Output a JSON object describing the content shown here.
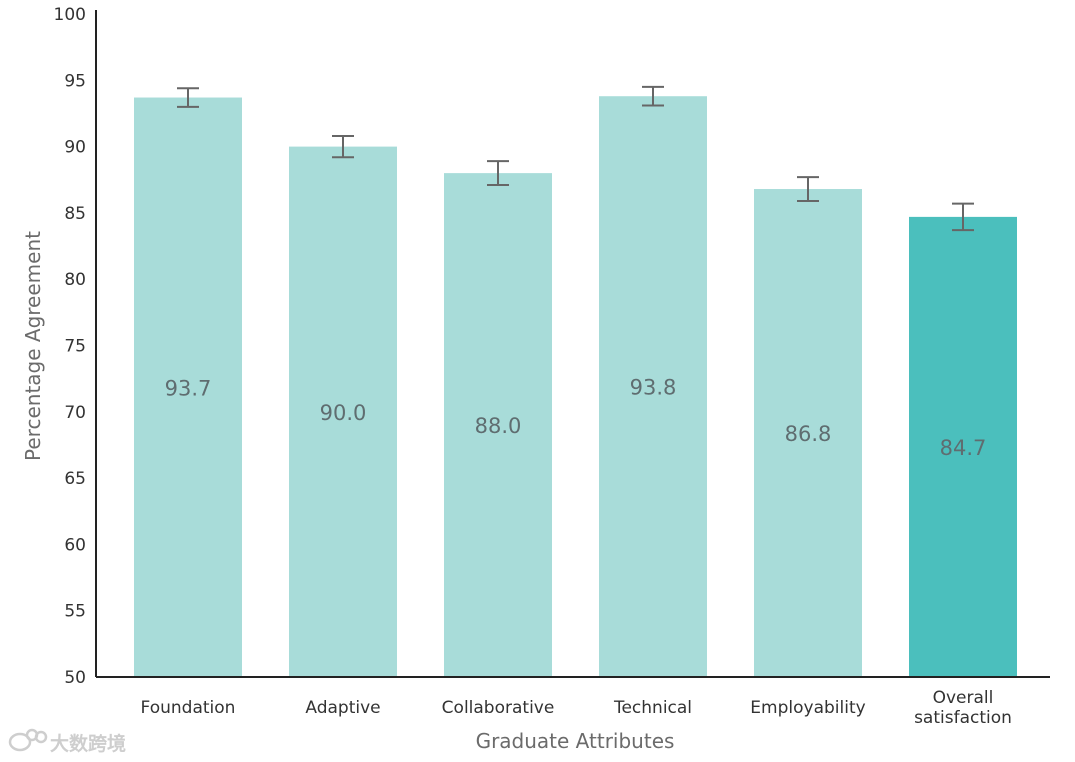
{
  "chart_data": {
    "type": "bar",
    "title": "",
    "xlabel": "Graduate Attributes",
    "ylabel": "Percentage Agreement",
    "ylim": [
      50,
      100
    ],
    "yticks": [
      50,
      55,
      60,
      65,
      70,
      75,
      80,
      85,
      90,
      95,
      100
    ],
    "categories": [
      [
        "Foundation"
      ],
      [
        "Adaptive"
      ],
      [
        "Collaborative"
      ],
      [
        "Technical"
      ],
      [
        "Employability"
      ],
      [
        "Overall",
        "satisfaction"
      ]
    ],
    "values": [
      93.7,
      90.0,
      88.0,
      93.8,
      86.8,
      84.7
    ],
    "value_labels": [
      "93.7",
      "90.0",
      "88.0",
      "93.8",
      "86.8",
      "84.7"
    ],
    "error_low": [
      93.0,
      89.2,
      87.1,
      93.1,
      85.9,
      83.7
    ],
    "error_high": [
      94.4,
      90.8,
      88.9,
      94.5,
      87.7,
      85.7
    ],
    "highlight_index": 5
  },
  "colors": {
    "bar": "#a8dcd9",
    "highlight_bar": "#4bbfbd",
    "error_bar": "#666666",
    "axis": "#222222"
  },
  "watermark": {
    "text": "大数跨境"
  }
}
